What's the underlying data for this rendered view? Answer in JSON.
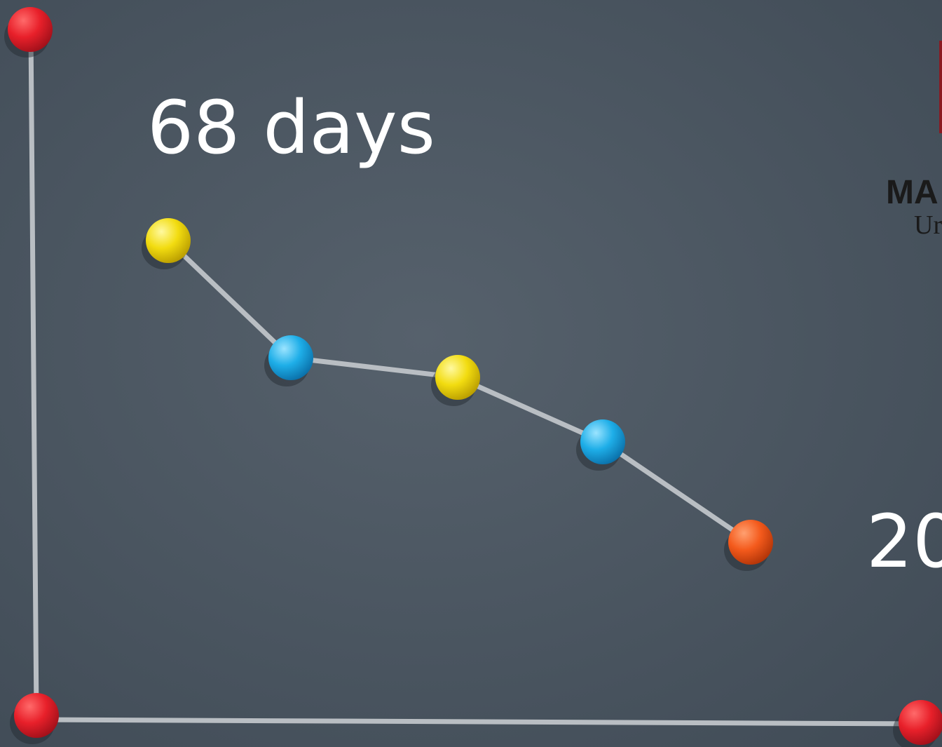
{
  "slide": {
    "title": "68 days",
    "logo": {
      "line1": "MA",
      "line2": "Ur"
    },
    "year": "20"
  }
}
